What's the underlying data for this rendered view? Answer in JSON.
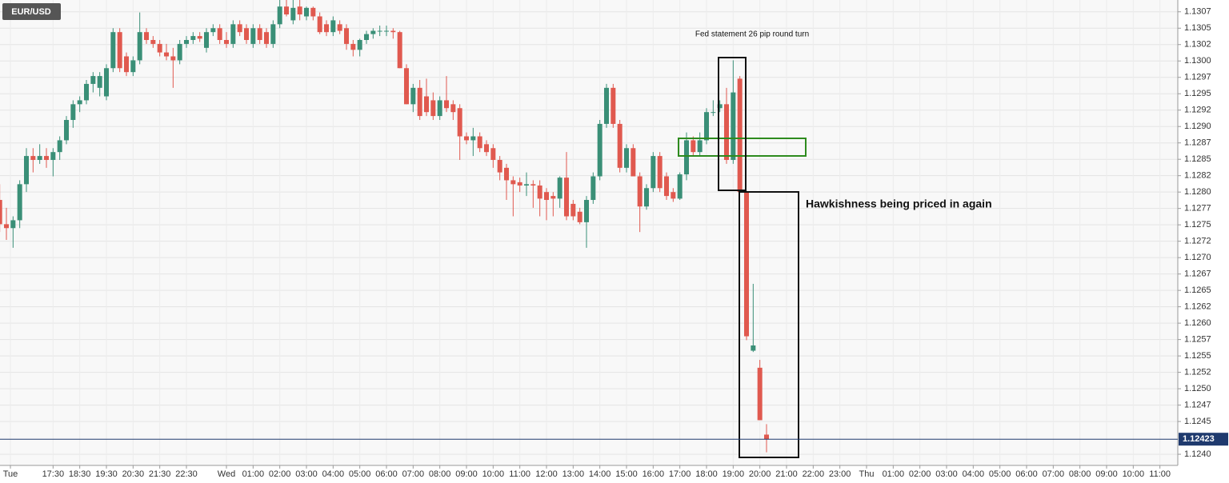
{
  "chart_data": {
    "type": "candlestick",
    "symbol": "EUR/USD",
    "annotations": [
      "Fed statement  26 pip round turn",
      "Hawkishness being priced in  again"
    ],
    "up_color": "#3a8f77",
    "down_color": "#e0594f",
    "last_color": "#1f3a6e",
    "grid": true,
    "xlim": [
      -8.49,
      35.67
    ],
    "ylim": [
      1.12383,
      1.13093
    ],
    "xticks": [
      {
        "value": -8.1,
        "label": "Tue"
      },
      {
        "value": -6.5,
        "label": "17:30"
      },
      {
        "value": -5.5,
        "label": "18:30"
      },
      {
        "value": -4.5,
        "label": "19:30"
      },
      {
        "value": -3.5,
        "label": "20:30"
      },
      {
        "value": -2.5,
        "label": "21:30"
      },
      {
        "value": -1.5,
        "label": "22:30"
      },
      {
        "value": 0,
        "label": "Wed"
      },
      {
        "value": 1,
        "label": "01:00"
      },
      {
        "value": 2,
        "label": "02:00"
      },
      {
        "value": 3,
        "label": "03:00"
      },
      {
        "value": 4,
        "label": "04:00"
      },
      {
        "value": 5,
        "label": "05:00"
      },
      {
        "value": 6,
        "label": "06:00"
      },
      {
        "value": 7,
        "label": "07:00"
      },
      {
        "value": 8,
        "label": "08:00"
      },
      {
        "value": 9,
        "label": "09:00"
      },
      {
        "value": 10,
        "label": "10:00"
      },
      {
        "value": 11,
        "label": "11:00"
      },
      {
        "value": 12,
        "label": "12:00"
      },
      {
        "value": 13,
        "label": "13:00"
      },
      {
        "value": 14,
        "label": "14:00"
      },
      {
        "value": 15,
        "label": "15:00"
      },
      {
        "value": 16,
        "label": "16:00"
      },
      {
        "value": 17,
        "label": "17:00"
      },
      {
        "value": 18,
        "label": "18:00"
      },
      {
        "value": 19,
        "label": "19:00"
      },
      {
        "value": 20,
        "label": "20:00"
      },
      {
        "value": 21,
        "label": "21:00"
      },
      {
        "value": 22,
        "label": "22:00"
      },
      {
        "value": 23,
        "label": "23:00"
      },
      {
        "value": 24,
        "label": "Thu"
      },
      {
        "value": 25,
        "label": "01:00"
      },
      {
        "value": 26,
        "label": "02:00"
      },
      {
        "value": 27,
        "label": "03:00"
      },
      {
        "value": 28,
        "label": "04:00"
      },
      {
        "value": 29,
        "label": "05:00"
      },
      {
        "value": 30,
        "label": "06:00"
      },
      {
        "value": 31,
        "label": "07:00"
      },
      {
        "value": 32,
        "label": "08:00"
      },
      {
        "value": 33,
        "label": "09:00"
      },
      {
        "value": 34,
        "label": "10:00"
      },
      {
        "value": 35,
        "label": "11:00"
      }
    ],
    "yticks": [
      {
        "value": 1.13075,
        "label": "1.1307"
      },
      1.1305,
      {
        "value": 1.13025,
        "label": "1.1302"
      },
      {
        "value": 1.13,
        "label": "1.1300"
      },
      {
        "value": 1.12975,
        "label": "1.1297"
      },
      1.1295,
      {
        "value": 1.12925,
        "label": "1.1292"
      },
      {
        "value": 1.129,
        "label": "1.1290"
      },
      {
        "value": 1.12875,
        "label": "1.1287"
      },
      1.1285,
      {
        "value": 1.12825,
        "label": "1.1282"
      },
      {
        "value": 1.128,
        "label": "1.1280"
      },
      {
        "value": 1.12775,
        "label": "1.1277"
      },
      1.1275,
      {
        "value": 1.12725,
        "label": "1.1272"
      },
      {
        "value": 1.127,
        "label": "1.1270"
      },
      {
        "value": 1.12675,
        "label": "1.1267"
      },
      1.1265,
      {
        "value": 1.12625,
        "label": "1.1262"
      },
      {
        "value": 1.126,
        "label": "1.1260"
      },
      {
        "value": 1.12575,
        "label": "1.1257"
      },
      1.1255,
      {
        "value": 1.12525,
        "label": "1.1252"
      },
      {
        "value": 1.125,
        "label": "1.1250"
      },
      {
        "value": 1.12475,
        "label": "1.1247"
      },
      1.1245,
      {
        "value": 1.124,
        "label": "1.1240"
      }
    ],
    "x": [
      -8.5,
      -8.25,
      -8,
      -7.75,
      -7.5,
      -7.25,
      -7,
      -6.75,
      -6.5,
      -6.25,
      -6,
      -5.75,
      -5.5,
      -5.25,
      -5,
      -4.75,
      -4.5,
      -4.25,
      -4,
      -3.75,
      -3.5,
      -3.25,
      -3,
      -2.75,
      -2.5,
      -2.25,
      -2,
      -1.75,
      -1.5,
      -1.25,
      -1,
      -0.75,
      -0.5,
      -0.25,
      0,
      0.25,
      0.5,
      0.75,
      1,
      1.25,
      1.5,
      1.75,
      2,
      2.25,
      2.5,
      2.75,
      3,
      3.25,
      3.5,
      3.75,
      4,
      4.25,
      4.5,
      4.75,
      5,
      5.25,
      5.5,
      5.75,
      6,
      6.25,
      6.5,
      6.75,
      7,
      7.25,
      7.5,
      7.75,
      8,
      8.25,
      8.5,
      8.75,
      9,
      9.25,
      9.5,
      9.75,
      10,
      10.25,
      10.5,
      10.75,
      11,
      11.25,
      11.5,
      11.75,
      12,
      12.25,
      12.5,
      12.75,
      13,
      13.25,
      13.5,
      13.75,
      14,
      14.25,
      14.5,
      14.75,
      15,
      15.25,
      15.5,
      15.75,
      16,
      16.25,
      16.5,
      16.75,
      17,
      17.25,
      17.5,
      17.75,
      18,
      18.25,
      18.5,
      18.75,
      19,
      19.25,
      19.5,
      19.75,
      20,
      20.25
    ],
    "open": [
      1.12788,
      1.12751,
      1.12745,
      1.12757,
      1.12812,
      1.12855,
      1.12849,
      1.12855,
      1.12849,
      1.12861,
      1.12879,
      1.1291,
      1.12934,
      1.1294,
      1.12965,
      1.12959,
      1.12946,
      1.12989,
      1.13044,
      1.13007,
      1.12983,
      1.13001,
      1.13044,
      1.13032,
      1.13026,
      1.13013,
      1.13007,
      1.13001,
      1.13026,
      1.13032,
      1.13038,
      1.1302,
      1.13044,
      1.1305,
      1.13032,
      1.13026,
      1.13056,
      1.1305,
      1.13026,
      1.1305,
      1.13044,
      1.13026,
      1.13056,
      1.13083,
      1.13062,
      1.13083,
      1.13068,
      1.13081,
      1.13068,
      1.13056,
      1.13044,
      1.13056,
      1.1305,
      1.13026,
      1.13017,
      1.13032,
      1.13041,
      1.13046,
      1.13046,
      1.13046,
      1.13044,
      1.12989,
      1.12934,
      1.12959,
      1.12946,
      1.1294,
      1.12916,
      1.1294,
      1.12934,
      1.12928,
      1.12885,
      1.12879,
      1.12885,
      1.12873,
      1.12867,
      1.12849,
      1.12837,
      1.12818,
      1.12815,
      1.1281,
      1.12812,
      1.1281,
      1.128,
      1.12794,
      1.1279,
      1.12822,
      1.12782,
      1.1277,
      1.12754,
      1.12788,
      1.12824,
      1.12904,
      1.12959,
      1.12904,
      1.12837,
      1.12867,
      1.12824,
      1.12778,
      1.12806,
      1.12855,
      1.12824,
      1.128,
      1.1279,
      1.12827,
      1.12879,
      1.12861,
      1.12879,
      1.12922,
      1.12928,
      1.12934,
      1.12849,
      1.12973,
      1.128,
      1.12558,
      1.12532,
      1.1243
    ],
    "high": [
      1.12812,
      1.12776,
      1.12763,
      1.12818,
      1.12867,
      1.12867,
      1.12873,
      1.12867,
      1.12867,
      1.12885,
      1.12916,
      1.1294,
      1.12946,
      1.12971,
      1.12983,
      1.12983,
      1.12995,
      1.1305,
      1.1305,
      1.13013,
      1.13007,
      1.13074,
      1.1305,
      1.13038,
      1.13032,
      1.13026,
      1.1302,
      1.13032,
      1.13038,
      1.13044,
      1.13044,
      1.1305,
      1.13056,
      1.13056,
      1.13044,
      1.13062,
      1.13062,
      1.13056,
      1.13056,
      1.13056,
      1.1305,
      1.13062,
      1.13093,
      1.13093,
      1.13093,
      1.13093,
      1.13083,
      1.13083,
      1.13074,
      1.13062,
      1.13068,
      1.13062,
      1.13056,
      1.13032,
      1.13034,
      1.13046,
      1.1305,
      1.13054,
      1.13054,
      1.1305,
      1.13046,
      1.12995,
      1.12965,
      1.12971,
      1.12973,
      1.12952,
      1.12946,
      1.12977,
      1.1294,
      1.12934,
      1.12891,
      1.12898,
      1.12891,
      1.12879,
      1.12873,
      1.12855,
      1.12843,
      1.12824,
      1.12822,
      1.1283,
      1.12818,
      1.12818,
      1.12806,
      1.128,
      1.12824,
      1.12861,
      1.12788,
      1.12776,
      1.12794,
      1.1283,
      1.1291,
      1.12965,
      1.12965,
      1.1291,
      1.12873,
      1.12873,
      1.1283,
      1.12812,
      1.12861,
      1.12861,
      1.1283,
      1.12806,
      1.1283,
      1.12891,
      1.12885,
      1.12891,
      1.12928,
      1.1294,
      1.1294,
      1.12959,
      1.13001,
      1.12977,
      1.12802,
      1.1266,
      1.12544,
      1.12446
    ],
    "low": [
      1.12739,
      1.12727,
      1.12715,
      1.12745,
      1.128,
      1.1283,
      1.12843,
      1.12837,
      1.12824,
      1.12849,
      1.12873,
      1.12898,
      1.12922,
      1.12934,
      1.12952,
      1.12946,
      1.1294,
      1.12983,
      1.12983,
      1.12977,
      1.12977,
      1.12995,
      1.13026,
      1.1302,
      1.13007,
      1.13001,
      1.12959,
      1.12995,
      1.1302,
      1.13026,
      1.13029,
      1.13013,
      1.13038,
      1.13026,
      1.1302,
      1.1302,
      1.13038,
      1.13026,
      1.1302,
      1.13026,
      1.1302,
      1.1302,
      1.1305,
      1.13068,
      1.13056,
      1.13062,
      1.13062,
      1.13062,
      1.13041,
      1.13038,
      1.13038,
      1.13041,
      1.13017,
      1.13007,
      1.13007,
      1.13026,
      1.13034,
      1.13038,
      1.13038,
      1.13034,
      1.12989,
      1.12934,
      1.12922,
      1.1291,
      1.12916,
      1.1291,
      1.1291,
      1.12922,
      1.1291,
      1.12849,
      1.12873,
      1.12855,
      1.12861,
      1.12855,
      1.12837,
      1.12818,
      1.12788,
      1.12763,
      1.128,
      1.12794,
      1.12776,
      1.12763,
      1.12757,
      1.12763,
      1.12776,
      1.12757,
      1.12757,
      1.12751,
      1.12715,
      1.12782,
      1.12818,
      1.12898,
      1.12898,
      1.1283,
      1.1283,
      1.12824,
      1.12739,
      1.12773,
      1.128,
      1.128,
      1.12788,
      1.12785,
      1.12788,
      1.12818,
      1.12855,
      1.12855,
      1.12873,
      1.12916,
      1.12922,
      1.12843,
      1.12843,
      1.128,
      1.12574,
      1.12556,
      1.12452,
      1.12403
    ],
    "close": [
      1.12751,
      1.12745,
      1.12757,
      1.12812,
      1.12855,
      1.12849,
      1.12855,
      1.12849,
      1.12861,
      1.12879,
      1.1291,
      1.12934,
      1.1294,
      1.12965,
      1.12977,
      1.12977,
      1.12989,
      1.13044,
      1.12989,
      1.12983,
      1.13001,
      1.13044,
      1.13032,
      1.13026,
      1.13013,
      1.13007,
      1.13001,
      1.13026,
      1.13032,
      1.13038,
      1.13034,
      1.13044,
      1.1305,
      1.13032,
      1.13026,
      1.13056,
      1.13044,
      1.13032,
      1.1305,
      1.13032,
      1.13026,
      1.13056,
      1.13083,
      1.13071,
      1.13081,
      1.13071,
      1.13081,
      1.13068,
      1.13044,
      1.13044,
      1.13062,
      1.13046,
      1.13026,
      1.13017,
      1.13032,
      1.13041,
      1.13046,
      1.13046,
      1.13046,
      1.13044,
      1.12989,
      1.12934,
      1.12959,
      1.12916,
      1.12922,
      1.12916,
      1.1294,
      1.12928,
      1.12922,
      1.12885,
      1.12879,
      1.12885,
      1.12867,
      1.12861,
      1.12849,
      1.1283,
      1.12818,
      1.12812,
      1.1281,
      1.12812,
      1.1281,
      1.1279,
      1.12788,
      1.1279,
      1.12822,
      1.12763,
      1.12763,
      1.12754,
      1.12788,
      1.12824,
      1.12904,
      1.12959,
      1.12904,
      1.12837,
      1.12867,
      1.12824,
      1.12778,
      1.12806,
      1.12855,
      1.12806,
      1.12794,
      1.1279,
      1.12827,
      1.12879,
      1.12861,
      1.12879,
      1.12922,
      1.12922,
      1.12934,
      1.12849,
      1.12952,
      1.128,
      1.1258,
      1.12566,
      1.12452,
      1.12423
    ]
  }
}
